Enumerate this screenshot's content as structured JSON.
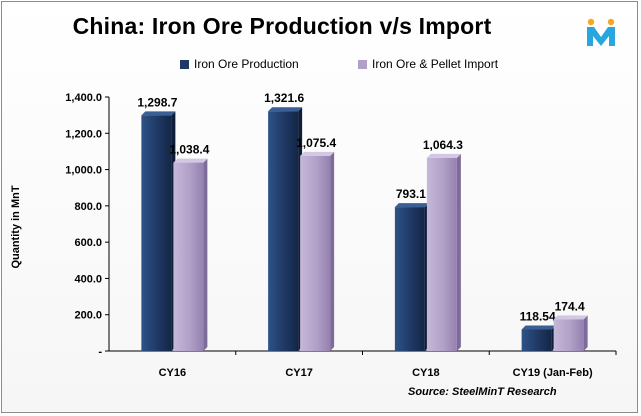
{
  "chart_data": {
    "type": "bar",
    "title": "China: Iron Ore Production v/s Import",
    "ylabel": "Quantity in MnT",
    "xlabel": "",
    "categories": [
      "CY16",
      "CY17",
      "CY18",
      "CY19 (Jan-Feb)"
    ],
    "series": [
      {
        "name": "Iron Ore Production",
        "values": [
          1298.7,
          1321.6,
          793.1,
          118.54
        ],
        "labels": [
          "1,298.7",
          "1,321.6",
          "793.1",
          "118.54"
        ],
        "color": "#1f3864"
      },
      {
        "name": "Iron Ore & Pellet Import",
        "values": [
          1038.4,
          1075.4,
          1064.3,
          174.4
        ],
        "labels": [
          "1,038.4",
          "1,075.4",
          "1,064.3",
          "174.4"
        ],
        "color": "#b1a0c7"
      }
    ],
    "ylim": [
      0,
      1400
    ],
    "yticks": [
      0,
      200,
      400,
      600,
      800,
      1000,
      1200,
      1400
    ],
    "ytick_labels": [
      "-",
      "200.0",
      "400.0",
      "600.0",
      "800.0",
      "1,000.0",
      "1,200.0",
      "1,400.0"
    ],
    "grid": false,
    "legend_position": "top"
  },
  "source": "Source: SteelMinT Research",
  "logo": {
    "icon": "steelmint-m-logo",
    "colors": [
      "#f5a623",
      "#2aa6df"
    ]
  }
}
